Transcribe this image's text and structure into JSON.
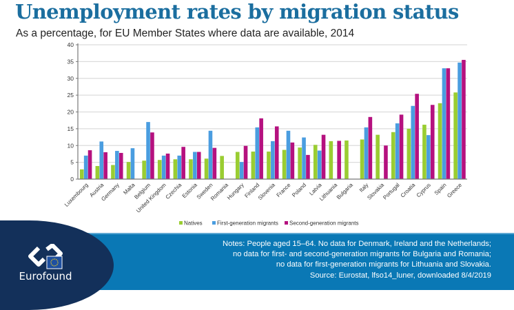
{
  "header": {
    "title": "Unemployment rates by migration status",
    "subtitle": "As a percentage, for EU Member States where data are available, 2014"
  },
  "colors": {
    "title": "#1b6e9f",
    "natives": "#9acd32",
    "first_generation": "#4a9de0",
    "second_generation": "#b5117f",
    "footer_dark": "#13305a",
    "footer_light": "#0a78b5"
  },
  "chart_data": {
    "type": "bar",
    "title": "Unemployment rates by migration status",
    "subtitle": "As a percentage, for EU Member States where data are available, 2014",
    "xlabel": "",
    "ylabel": "",
    "ylim": [
      0,
      40
    ],
    "yticks": [
      0,
      5,
      10,
      15,
      20,
      25,
      30,
      35,
      40
    ],
    "grid": true,
    "legend_position": "bottom",
    "categories": [
      "Luxembourg",
      "Austria",
      "Germany",
      "Malta",
      "Belgium",
      "United Kingdom",
      "Czechia",
      "Estonia",
      "Sweden",
      "Romania",
      "Hungary",
      "Finland",
      "Slovenia",
      "France",
      "Poland",
      "Latvia",
      "Lithuania",
      "Bulgaria",
      "Italy",
      "Slovakia",
      "Portugal",
      "Croatia",
      "Cyprus",
      "Spain",
      "Greece"
    ],
    "series": [
      {
        "name": "Natives",
        "color": "#9acd32",
        "values": [
          2.9,
          3.9,
          4.2,
          5.1,
          5.5,
          5.7,
          5.9,
          5.9,
          6.1,
          6.9,
          8.1,
          8.2,
          8.2,
          8.7,
          9.4,
          10.2,
          11.3,
          11.5,
          11.8,
          13.2,
          14.0,
          15.0,
          16.2,
          22.6,
          25.8
        ]
      },
      {
        "name": "First-generation migrants",
        "color": "#4a9de0",
        "values": [
          7.0,
          11.2,
          8.4,
          9.2,
          17.0,
          7.0,
          7.0,
          8.1,
          14.4,
          null,
          5.1,
          15.4,
          11.3,
          14.4,
          12.4,
          8.5,
          null,
          null,
          15.4,
          null,
          16.6,
          21.8,
          13.1,
          33.0,
          34.7
        ]
      },
      {
        "name": "Second-generation migrants",
        "color": "#b5117f",
        "values": [
          8.6,
          8.0,
          7.8,
          null,
          13.9,
          7.6,
          9.6,
          8.1,
          9.3,
          null,
          9.9,
          18.1,
          15.7,
          10.9,
          7.2,
          13.2,
          11.4,
          null,
          18.5,
          10.0,
          19.2,
          25.4,
          22.1,
          33.0,
          35.5
        ]
      }
    ]
  },
  "legend": {
    "items": [
      {
        "label": "Natives",
        "color": "#9acd32"
      },
      {
        "label": "First-generation migrants",
        "color": "#4a9de0"
      },
      {
        "label": "Second-generation migrants",
        "color": "#b5117f"
      }
    ]
  },
  "footer": {
    "logo_text": "Eurofound",
    "notes": [
      "Notes: People aged 15–64. No data for Denmark, Ireland and the Netherlands;",
      "no data for first- and second-generation migrants for Bulgaria and Romania;",
      "no data for first-generation migrants for Lithuania and Slovakia.",
      "Source: Eurostat, lfso14_luner, downloaded 8/4/2019"
    ]
  }
}
